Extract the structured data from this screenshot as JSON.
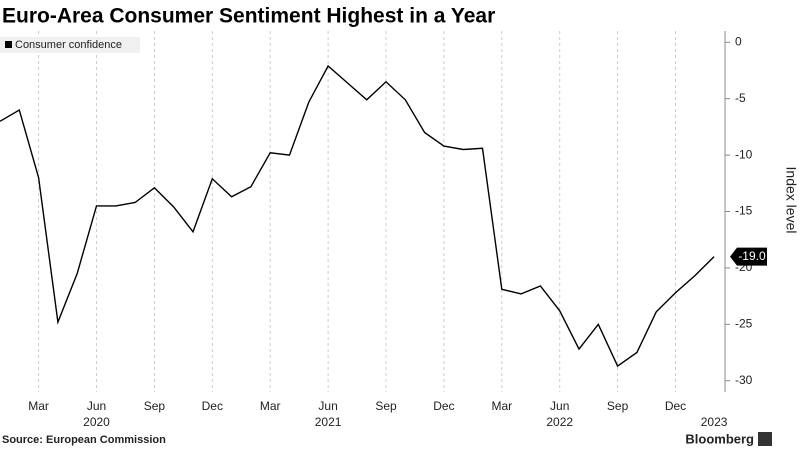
{
  "chart_data": {
    "type": "line",
    "title": "Euro-Area Consumer Sentiment Highest in a Year",
    "y_label": "Index level",
    "source": "Source: European Commission",
    "brand": "Bloomberg",
    "categories": [
      null,
      null,
      "Mar",
      null,
      null,
      "Jun",
      null,
      null,
      "Sep",
      null,
      null,
      "Dec",
      null,
      null,
      "Mar",
      null,
      null,
      "Jun",
      null,
      null,
      "Sep",
      null,
      null,
      "Dec",
      null,
      null,
      "Mar",
      null,
      null,
      "Jun",
      null,
      null,
      "Sep",
      null,
      null,
      "Dec",
      null,
      null
    ],
    "category_years": [
      null,
      null,
      null,
      null,
      null,
      "2020",
      null,
      null,
      null,
      null,
      null,
      null,
      null,
      null,
      null,
      null,
      null,
      "2021",
      null,
      null,
      null,
      null,
      null,
      null,
      null,
      null,
      null,
      null,
      null,
      "2022",
      null,
      null,
      null,
      null,
      null,
      null,
      null,
      "2023"
    ],
    "series": [
      {
        "name": "Consumer confidence",
        "color": "#000000",
        "values": [
          -7.0,
          -6.0,
          -12.0,
          -24.8,
          -20.5,
          -14.5,
          -14.5,
          -14.2,
          -12.9,
          -14.6,
          -16.8,
          -12.1,
          -13.7,
          -12.8,
          -9.8,
          -10.0,
          -5.3,
          -2.1,
          -3.6,
          -5.1,
          -3.5,
          -5.1,
          -8.0,
          -9.2,
          -9.5,
          -9.4,
          -21.9,
          -22.3,
          -21.6,
          -23.8,
          -27.2,
          -25.0,
          -28.7,
          -27.5,
          -23.9,
          -22.2,
          -20.7,
          -19.0
        ],
        "value_labels": [
          null,
          null,
          null,
          null,
          null,
          null,
          null,
          null,
          null,
          null,
          null,
          null,
          null,
          null,
          null,
          null,
          null,
          null,
          null,
          null,
          null,
          null,
          null,
          null,
          null,
          null,
          null,
          null,
          null,
          null,
          null,
          null,
          null,
          null,
          null,
          null,
          null,
          "-19.0"
        ]
      }
    ],
    "ylim": [
      -31,
      1
    ],
    "yticks": [
      0,
      -5,
      -10,
      -15,
      -20,
      -25,
      -30
    ],
    "grid": true,
    "legend": "top-left"
  }
}
